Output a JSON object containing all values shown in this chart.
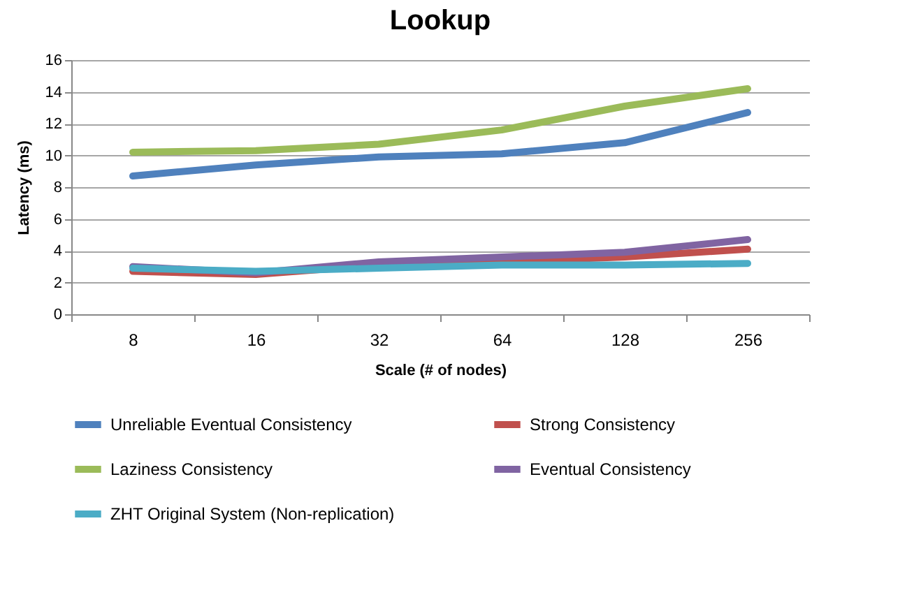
{
  "chart_data": {
    "type": "line",
    "title": "Lookup",
    "xlabel": "Scale (# of nodes)",
    "ylabel": "Latency (ms)",
    "categories": [
      "8",
      "16",
      "32",
      "64",
      "128",
      "256"
    ],
    "series": [
      {
        "name": "Unreliable Eventual Consistency",
        "color": "#4f81bd",
        "values": [
          8.7,
          9.4,
          9.9,
          10.1,
          10.8,
          12.7
        ]
      },
      {
        "name": "Strong Consistency",
        "color": "#c0504d",
        "values": [
          2.7,
          2.5,
          3.1,
          3.3,
          3.6,
          4.1
        ]
      },
      {
        "name": "Laziness Consistency",
        "color": "#9bbb59",
        "values": [
          10.2,
          10.3,
          10.7,
          11.6,
          13.1,
          14.2
        ]
      },
      {
        "name": "Eventual Consistency",
        "color": "#8064a2",
        "values": [
          3.0,
          2.6,
          3.3,
          3.6,
          3.9,
          4.7
        ]
      },
      {
        "name": "ZHT Original System (Non-replication)",
        "color": "#4bacc6",
        "values": [
          2.9,
          2.7,
          2.9,
          3.1,
          3.1,
          3.2
        ]
      }
    ],
    "ylim": [
      0,
      16
    ],
    "yticks": [
      0,
      2,
      4,
      6,
      8,
      10,
      12,
      14,
      16
    ],
    "grid": "y",
    "legend": "bottom",
    "marker": "none",
    "line_style": "solid"
  }
}
